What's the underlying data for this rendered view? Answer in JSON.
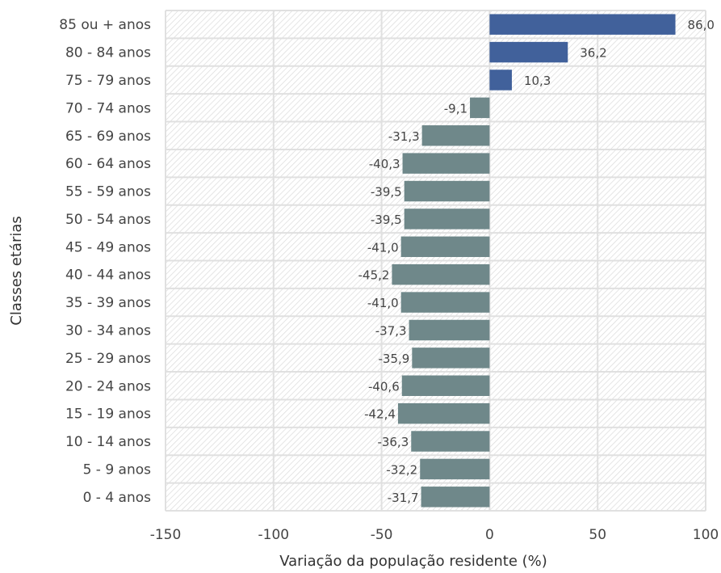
{
  "chart_data": {
    "type": "bar",
    "orientation": "horizontal",
    "xlabel": "Variação da população residente (%)",
    "ylabel": "Classes etárias",
    "xlim": [
      -150,
      100
    ],
    "xticks": [
      -150,
      -100,
      -50,
      0,
      50,
      100
    ],
    "xtick_labels": [
      "-150",
      "-100",
      "-50",
      "0",
      "50",
      "100"
    ],
    "grid": true,
    "categories": [
      "85 ou + anos",
      "80 - 84 anos",
      "75 - 79 anos",
      "70 - 74 anos",
      "65 - 69 anos",
      "60 - 64 anos",
      "55 - 59 anos",
      "50 - 54 anos",
      "45 - 49 anos",
      "40 - 44 anos",
      "35 - 39 anos",
      "30 - 34 anos",
      "25 - 29 anos",
      "20 - 24 anos",
      "15 - 19 anos",
      "10 - 14 anos",
      "5 - 9 anos",
      "0 - 4 anos"
    ],
    "values": [
      86.0,
      36.2,
      10.3,
      -9.1,
      -31.3,
      -40.3,
      -39.5,
      -39.5,
      -41.0,
      -45.2,
      -41.0,
      -37.3,
      -35.9,
      -40.6,
      -42.4,
      -36.3,
      -32.2,
      -31.7
    ],
    "value_labels": [
      "86,0",
      "36,2",
      "10,3",
      "-9,1",
      "-31,3",
      "-40,3",
      "-39,5",
      "-39,5",
      "-41,0",
      "-45,2",
      "-41,0",
      "-37,3",
      "-35,9",
      "-40,6",
      "-42,4",
      "-36,3",
      "-32,2",
      "-31,7"
    ],
    "colors": {
      "positive": "#41619b",
      "negative": "#6f888a",
      "grid": "#e0e0e0",
      "hatch": "#dcdcdc"
    }
  }
}
